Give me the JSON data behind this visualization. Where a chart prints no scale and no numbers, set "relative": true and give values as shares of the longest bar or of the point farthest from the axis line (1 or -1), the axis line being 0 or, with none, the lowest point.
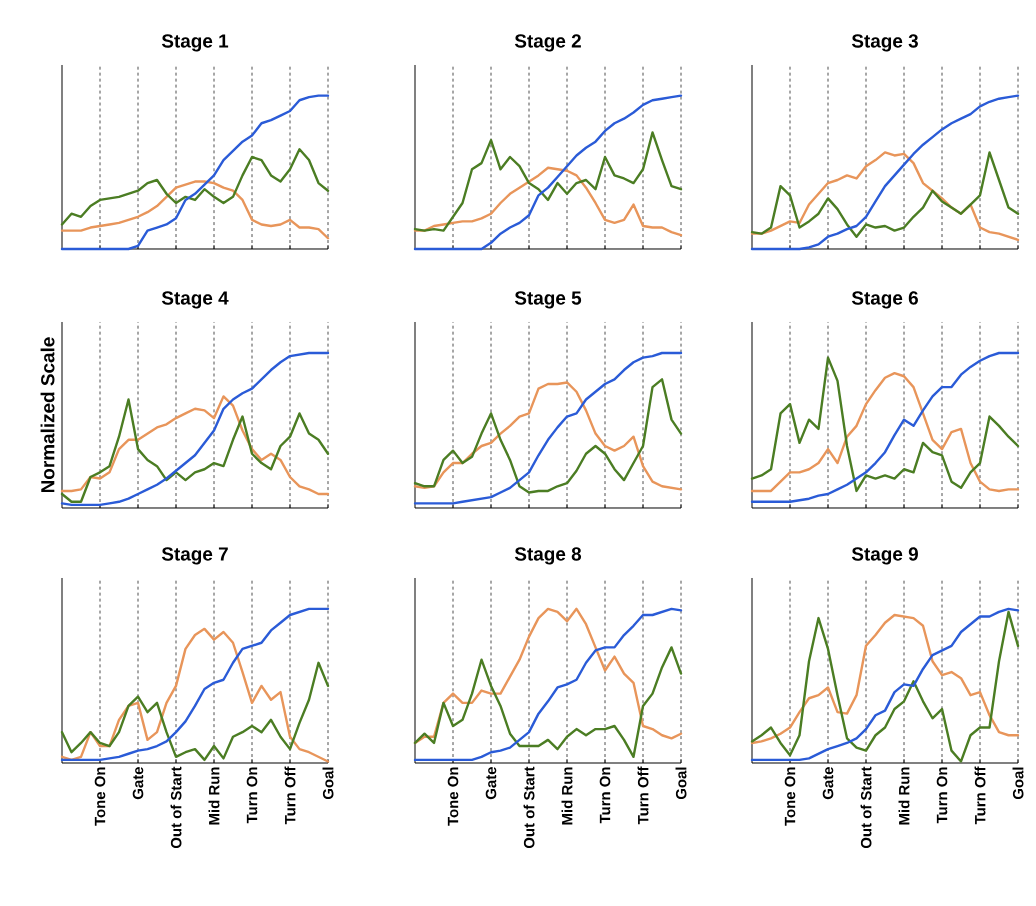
{
  "chart_data": [
    {
      "type": "line",
      "title": "Stage 1",
      "relative": true,
      "grid": "x",
      "tick_labels": false,
      "categories": [
        null,
        null,
        null,
        null,
        null,
        null,
        null,
        null,
        null,
        null,
        null,
        null,
        null,
        null,
        null,
        null,
        null,
        null,
        null,
        null,
        null,
        null,
        null,
        null,
        null,
        null,
        null,
        null,
        null
      ],
      "series": [
        {
          "color": "#e8955a",
          "values": [
            0.12,
            0.12,
            0.12,
            0.14,
            0.15,
            0.16,
            0.17,
            0.19,
            0.21,
            0.24,
            0.28,
            0.34,
            0.4,
            0.42,
            0.44,
            0.44,
            0.43,
            0.4,
            0.38,
            0.32,
            0.19,
            0.16,
            0.15,
            0.16,
            0.19,
            0.14,
            0.14,
            0.13,
            0.07
          ]
        },
        {
          "color": "#4b7d23",
          "values": [
            0.16,
            0.23,
            0.21,
            0.28,
            0.32,
            0.33,
            0.34,
            0.36,
            0.38,
            0.43,
            0.45,
            0.36,
            0.3,
            0.34,
            0.32,
            0.39,
            0.34,
            0.3,
            0.34,
            0.48,
            0.6,
            0.58,
            0.48,
            0.44,
            0.52,
            0.65,
            0.58,
            0.43,
            0.38
          ]
        },
        {
          "color": "#2a5bd7",
          "values": [
            0,
            0,
            0,
            0,
            0,
            0,
            0,
            0,
            0.02,
            0.12,
            0.14,
            0.16,
            0.2,
            0.32,
            0.36,
            0.42,
            0.48,
            0.58,
            0.64,
            0.7,
            0.74,
            0.82,
            0.84,
            0.87,
            0.9,
            0.97,
            0.99,
            1,
            1
          ]
        }
      ]
    },
    {
      "type": "line",
      "title": "Stage 2",
      "relative": true,
      "grid": "x",
      "tick_labels": false,
      "categories": [
        null,
        null,
        null,
        null,
        null,
        null,
        null,
        null,
        null,
        null,
        null,
        null,
        null,
        null,
        null,
        null,
        null,
        null,
        null,
        null,
        null,
        null,
        null,
        null,
        null,
        null,
        null,
        null,
        null
      ],
      "series": [
        {
          "color": "#e8955a",
          "values": [
            0.12,
            0.12,
            0.15,
            0.16,
            0.17,
            0.18,
            0.18,
            0.2,
            0.23,
            0.3,
            0.36,
            0.4,
            0.44,
            0.48,
            0.53,
            0.52,
            0.51,
            0.48,
            0.4,
            0.3,
            0.19,
            0.17,
            0.19,
            0.29,
            0.15,
            0.14,
            0.14,
            0.11,
            0.09
          ]
        },
        {
          "color": "#4b7d23",
          "values": [
            0.13,
            0.12,
            0.13,
            0.12,
            0.21,
            0.3,
            0.52,
            0.56,
            0.71,
            0.52,
            0.6,
            0.54,
            0.43,
            0.39,
            0.32,
            0.43,
            0.36,
            0.43,
            0.45,
            0.39,
            0.6,
            0.48,
            0.46,
            0.43,
            0.52,
            0.76,
            0.58,
            0.41,
            0.39
          ]
        },
        {
          "color": "#2a5bd7",
          "values": [
            0,
            0,
            0,
            0,
            0,
            0,
            0,
            0,
            0.04,
            0.1,
            0.14,
            0.17,
            0.22,
            0.35,
            0.4,
            0.47,
            0.54,
            0.61,
            0.66,
            0.7,
            0.77,
            0.82,
            0.85,
            0.89,
            0.94,
            0.97,
            0.98,
            0.99,
            1
          ]
        }
      ]
    },
    {
      "type": "line",
      "title": "Stage 3",
      "relative": true,
      "grid": "x",
      "tick_labels": false,
      "categories": [
        null,
        null,
        null,
        null,
        null,
        null,
        null,
        null,
        null,
        null,
        null,
        null,
        null,
        null,
        null,
        null,
        null,
        null,
        null,
        null,
        null,
        null,
        null,
        null,
        null,
        null,
        null,
        null,
        null
      ],
      "series": [
        {
          "color": "#e8955a",
          "values": [
            0.1,
            0.1,
            0.12,
            0.15,
            0.18,
            0.17,
            0.29,
            0.36,
            0.43,
            0.45,
            0.48,
            0.46,
            0.54,
            0.58,
            0.63,
            0.61,
            0.62,
            0.56,
            0.43,
            0.38,
            0.33,
            0.27,
            0.23,
            0.29,
            0.14,
            0.11,
            0.1,
            0.08,
            0.06
          ]
        },
        {
          "color": "#4b7d23",
          "values": [
            0.11,
            0.1,
            0.14,
            0.41,
            0.35,
            0.14,
            0.18,
            0.23,
            0.33,
            0.26,
            0.16,
            0.08,
            0.16,
            0.14,
            0.15,
            0.12,
            0.14,
            0.21,
            0.27,
            0.38,
            0.31,
            0.27,
            0.23,
            0.29,
            0.35,
            0.63,
            0.45,
            0.27,
            0.23
          ]
        },
        {
          "color": "#2a5bd7",
          "values": [
            0,
            0,
            0,
            0,
            0,
            0,
            0.01,
            0.03,
            0.08,
            0.1,
            0.13,
            0.15,
            0.21,
            0.31,
            0.41,
            0.48,
            0.55,
            0.62,
            0.68,
            0.73,
            0.78,
            0.82,
            0.85,
            0.88,
            0.93,
            0.96,
            0.98,
            0.99,
            1
          ]
        }
      ]
    },
    {
      "type": "line",
      "title": "Stage 4",
      "ylabel": "Normalized Scale",
      "relative": true,
      "grid": "x",
      "tick_labels": false,
      "categories": [
        null,
        null,
        null,
        null,
        null,
        null,
        null,
        null,
        null,
        null,
        null,
        null,
        null,
        null,
        null,
        null,
        null,
        null,
        null,
        null,
        null,
        null,
        null,
        null,
        null,
        null,
        null,
        null,
        null
      ],
      "series": [
        {
          "color": "#e8955a",
          "values": [
            0.11,
            0.11,
            0.12,
            0.2,
            0.19,
            0.23,
            0.38,
            0.44,
            0.44,
            0.48,
            0.52,
            0.54,
            0.58,
            0.61,
            0.64,
            0.63,
            0.58,
            0.72,
            0.66,
            0.5,
            0.38,
            0.31,
            0.35,
            0.31,
            0.2,
            0.14,
            0.12,
            0.09,
            0.09
          ]
        },
        {
          "color": "#4b7d23",
          "values": [
            0.09,
            0.04,
            0.04,
            0.2,
            0.23,
            0.27,
            0.46,
            0.7,
            0.38,
            0.31,
            0.27,
            0.18,
            0.23,
            0.18,
            0.23,
            0.25,
            0.29,
            0.27,
            0.44,
            0.59,
            0.35,
            0.29,
            0.25,
            0.4,
            0.46,
            0.61,
            0.48,
            0.44,
            0.35
          ]
        },
        {
          "color": "#2a5bd7",
          "values": [
            0.03,
            0.02,
            0.02,
            0.02,
            0.02,
            0.03,
            0.04,
            0.06,
            0.09,
            0.12,
            0.15,
            0.19,
            0.24,
            0.29,
            0.34,
            0.42,
            0.5,
            0.64,
            0.7,
            0.74,
            0.77,
            0.83,
            0.89,
            0.94,
            0.98,
            0.99,
            1,
            1,
            1
          ]
        }
      ]
    },
    {
      "type": "line",
      "title": "Stage 5",
      "relative": true,
      "grid": "x",
      "tick_labels": false,
      "categories": [
        null,
        null,
        null,
        null,
        null,
        null,
        null,
        null,
        null,
        null,
        null,
        null,
        null,
        null,
        null,
        null,
        null,
        null,
        null,
        null,
        null,
        null,
        null,
        null,
        null,
        null,
        null,
        null,
        null
      ],
      "series": [
        {
          "color": "#e8955a",
          "values": [
            0.14,
            0.13,
            0.14,
            0.23,
            0.29,
            0.29,
            0.35,
            0.4,
            0.42,
            0.48,
            0.53,
            0.59,
            0.61,
            0.77,
            0.8,
            0.8,
            0.81,
            0.75,
            0.63,
            0.48,
            0.4,
            0.37,
            0.4,
            0.46,
            0.27,
            0.17,
            0.14,
            0.13,
            0.12
          ]
        },
        {
          "color": "#4b7d23",
          "values": [
            0.16,
            0.14,
            0.14,
            0.31,
            0.37,
            0.29,
            0.33,
            0.48,
            0.61,
            0.44,
            0.31,
            0.14,
            0.1,
            0.11,
            0.11,
            0.14,
            0.16,
            0.24,
            0.35,
            0.4,
            0.35,
            0.25,
            0.18,
            0.29,
            0.4,
            0.78,
            0.83,
            0.57,
            0.48
          ]
        },
        {
          "color": "#2a5bd7",
          "values": [
            0.03,
            0.03,
            0.03,
            0.03,
            0.03,
            0.04,
            0.05,
            0.06,
            0.07,
            0.1,
            0.13,
            0.18,
            0.23,
            0.34,
            0.44,
            0.52,
            0.59,
            0.61,
            0.7,
            0.75,
            0.8,
            0.83,
            0.89,
            0.94,
            0.97,
            0.98,
            1,
            1,
            1
          ]
        }
      ]
    },
    {
      "type": "line",
      "title": "Stage 6",
      "relative": true,
      "grid": "x",
      "tick_labels": false,
      "categories": [
        null,
        null,
        null,
        null,
        null,
        null,
        null,
        null,
        null,
        null,
        null,
        null,
        null,
        null,
        null,
        null,
        null,
        null,
        null,
        null,
        null,
        null,
        null,
        null,
        null,
        null,
        null,
        null,
        null
      ],
      "series": [
        {
          "color": "#e8955a",
          "values": [
            0.11,
            0.11,
            0.11,
            0.17,
            0.23,
            0.23,
            0.25,
            0.29,
            0.38,
            0.29,
            0.46,
            0.53,
            0.67,
            0.76,
            0.84,
            0.87,
            0.85,
            0.78,
            0.61,
            0.44,
            0.38,
            0.49,
            0.51,
            0.29,
            0.17,
            0.12,
            0.11,
            0.12,
            0.12
          ]
        },
        {
          "color": "#4b7d23",
          "values": [
            0.19,
            0.21,
            0.25,
            0.61,
            0.67,
            0.42,
            0.57,
            0.51,
            0.97,
            0.82,
            0.4,
            0.11,
            0.21,
            0.19,
            0.21,
            0.19,
            0.25,
            0.23,
            0.42,
            0.36,
            0.34,
            0.17,
            0.13,
            0.23,
            0.29,
            0.59,
            0.53,
            0.46,
            0.4
          ]
        },
        {
          "color": "#2a5bd7",
          "values": [
            0.04,
            0.04,
            0.04,
            0.04,
            0.04,
            0.05,
            0.06,
            0.08,
            0.09,
            0.12,
            0.15,
            0.19,
            0.23,
            0.29,
            0.36,
            0.47,
            0.57,
            0.53,
            0.63,
            0.72,
            0.78,
            0.78,
            0.86,
            0.91,
            0.95,
            0.98,
            1,
            1,
            1
          ]
        }
      ]
    },
    {
      "type": "line",
      "title": "Stage 7",
      "relative": true,
      "grid": "x",
      "tick_labels": "x",
      "categories": [
        null,
        null,
        null,
        null,
        "Tone On",
        null,
        null,
        null,
        "Gate",
        null,
        null,
        null,
        "Out of Start",
        null,
        null,
        null,
        "Mid Run",
        null,
        null,
        null,
        "Turn On",
        null,
        null,
        null,
        "Turn Off",
        null,
        null,
        null,
        "Goal"
      ],
      "series": [
        {
          "color": "#e8955a",
          "values": [
            0.04,
            0.02,
            0.04,
            0.2,
            0.11,
            0.11,
            0.28,
            0.37,
            0.39,
            0.15,
            0.2,
            0.39,
            0.5,
            0.74,
            0.83,
            0.87,
            0.8,
            0.85,
            0.78,
            0.59,
            0.39,
            0.5,
            0.41,
            0.46,
            0.17,
            0.09,
            0.07,
            0.04,
            0.01
          ]
        },
        {
          "color": "#4b7d23",
          "values": [
            0.2,
            0.07,
            0.13,
            0.2,
            0.13,
            0.11,
            0.2,
            0.37,
            0.43,
            0.33,
            0.39,
            0.2,
            0.04,
            0.07,
            0.09,
            0.02,
            0.11,
            0.03,
            0.17,
            0.2,
            0.24,
            0.2,
            0.28,
            0.17,
            0.09,
            0.26,
            0.41,
            0.65,
            0.5
          ]
        },
        {
          "color": "#2a5bd7",
          "values": [
            0.02,
            0.02,
            0.02,
            0.02,
            0.02,
            0.03,
            0.04,
            0.06,
            0.08,
            0.09,
            0.11,
            0.14,
            0.2,
            0.27,
            0.37,
            0.48,
            0.52,
            0.54,
            0.65,
            0.74,
            0.76,
            0.78,
            0.86,
            0.91,
            0.96,
            0.98,
            1,
            1,
            1
          ]
        }
      ]
    },
    {
      "type": "line",
      "title": "Stage 8",
      "relative": true,
      "grid": "x",
      "tick_labels": "x",
      "categories": [
        null,
        null,
        null,
        null,
        "Tone On",
        null,
        null,
        null,
        "Gate",
        null,
        null,
        null,
        "Out of Start",
        null,
        null,
        null,
        "Mid Run",
        null,
        null,
        null,
        "Turn On",
        null,
        null,
        null,
        "Turn Off",
        null,
        null,
        null,
        "Goal"
      ],
      "series": [
        {
          "color": "#e8955a",
          "values": [
            0.13,
            0.17,
            0.17,
            0.39,
            0.45,
            0.39,
            0.39,
            0.47,
            0.45,
            0.45,
            0.56,
            0.67,
            0.82,
            0.94,
            1,
            0.98,
            0.92,
            1,
            0.9,
            0.75,
            0.6,
            0.69,
            0.58,
            0.52,
            0.24,
            0.22,
            0.18,
            0.16,
            0.19
          ]
        },
        {
          "color": "#4b7d23",
          "values": [
            0.13,
            0.19,
            0.13,
            0.39,
            0.24,
            0.28,
            0.45,
            0.67,
            0.5,
            0.37,
            0.19,
            0.11,
            0.11,
            0.11,
            0.15,
            0.09,
            0.17,
            0.22,
            0.18,
            0.22,
            0.22,
            0.24,
            0.15,
            0.04,
            0.37,
            0.45,
            0.62,
            0.75,
            0.58
          ]
        },
        {
          "color": "#2a5bd7",
          "values": [
            0.02,
            0.02,
            0.02,
            0.02,
            0.02,
            0.02,
            0.02,
            0.04,
            0.07,
            0.08,
            0.1,
            0.15,
            0.2,
            0.32,
            0.4,
            0.49,
            0.51,
            0.54,
            0.65,
            0.73,
            0.75,
            0.75,
            0.83,
            0.89,
            0.96,
            0.96,
            0.98,
            1,
            0.99
          ]
        }
      ]
    },
    {
      "type": "line",
      "title": "Stage 9",
      "relative": true,
      "grid": "x",
      "tick_labels": "x",
      "categories": [
        null,
        null,
        null,
        null,
        "Tone On",
        null,
        null,
        null,
        "Gate",
        null,
        null,
        null,
        "Out of Start",
        null,
        null,
        null,
        "Mid Run",
        null,
        null,
        null,
        "Turn On",
        null,
        null,
        null,
        "Turn Off",
        null,
        null,
        null,
        "Goal"
      ],
      "series": [
        {
          "color": "#e8955a",
          "values": [
            0.13,
            0.14,
            0.16,
            0.19,
            0.23,
            0.33,
            0.42,
            0.44,
            0.49,
            0.33,
            0.32,
            0.44,
            0.76,
            0.83,
            0.91,
            0.96,
            0.95,
            0.94,
            0.89,
            0.66,
            0.57,
            0.59,
            0.55,
            0.44,
            0.46,
            0.31,
            0.2,
            0.18,
            0.18
          ]
        },
        {
          "color": "#4b7d23",
          "values": [
            0.14,
            0.18,
            0.23,
            0.13,
            0.05,
            0.18,
            0.66,
            0.94,
            0.74,
            0.44,
            0.16,
            0.1,
            0.08,
            0.18,
            0.23,
            0.35,
            0.4,
            0.53,
            0.4,
            0.29,
            0.35,
            0.08,
            0.01,
            0.18,
            0.23,
            0.23,
            0.66,
            0.98,
            0.76
          ]
        },
        {
          "color": "#2a5bd7",
          "values": [
            0.02,
            0.02,
            0.02,
            0.02,
            0.02,
            0.02,
            0.03,
            0.06,
            0.09,
            0.11,
            0.13,
            0.16,
            0.22,
            0.31,
            0.34,
            0.46,
            0.51,
            0.5,
            0.61,
            0.7,
            0.73,
            0.76,
            0.85,
            0.9,
            0.95,
            0.95,
            0.98,
            1,
            0.99
          ]
        }
      ]
    }
  ]
}
